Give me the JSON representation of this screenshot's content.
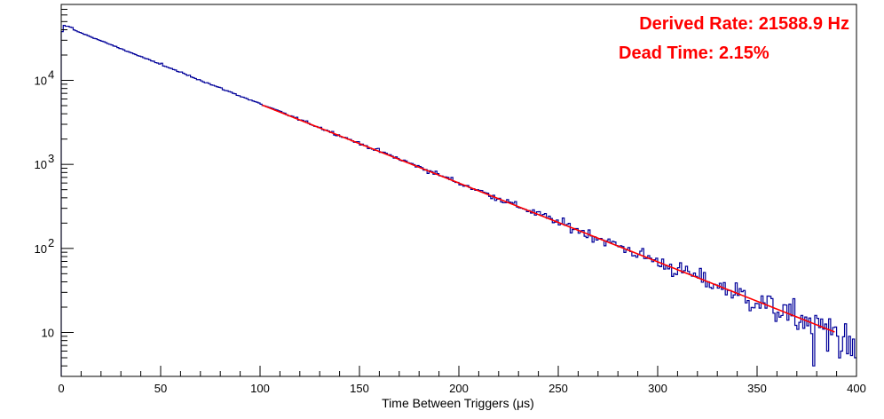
{
  "chart_data": {
    "type": "line",
    "title": "",
    "xlabel": "Time Between Triggers (μs)",
    "ylabel": "",
    "xlim": [
      0,
      400
    ],
    "ylim": [
      3,
      80000
    ],
    "yscale": "log",
    "grid": false,
    "legend": "none",
    "x_ticks": [
      0,
      50,
      100,
      150,
      200,
      250,
      300,
      350,
      400
    ],
    "y_ticks": [
      {
        "value": 10,
        "label": "10"
      },
      {
        "value": 100,
        "label": "10",
        "exp": "2"
      },
      {
        "value": 1000,
        "label": "10",
        "exp": "3"
      },
      {
        "value": 10000,
        "label": "10",
        "exp": "4"
      }
    ],
    "annotations": [
      {
        "text": "Derived Rate: 21588.9 Hz",
        "color": "#ff0000"
      },
      {
        "text": "Dead Time: 2.15%",
        "color": "#ff0000"
      }
    ],
    "series": [
      {
        "kind": "histogram",
        "color": "#000099",
        "bin_width": 1,
        "model": {
          "type": "exponential",
          "amplitude": 45000,
          "rate_per_us": 0.02159
        },
        "points": [
          {
            "x": 0,
            "y": 38000
          },
          {
            "x": 1,
            "y": 45000
          },
          {
            "x": 2,
            "y": 44000
          },
          {
            "x": 3,
            "y": 44000
          },
          {
            "x": 4,
            "y": 43000
          },
          {
            "x": 5,
            "y": 42500
          },
          {
            "x": 50,
            "y": 16000
          },
          {
            "x": 100,
            "y": 5200
          },
          {
            "x": 150,
            "y": 1700
          },
          {
            "x": 200,
            "y": 570
          },
          {
            "x": 250,
            "y": 190
          },
          {
            "x": 300,
            "y": 62
          },
          {
            "x": 325,
            "y": 40
          },
          {
            "x": 350,
            "y": 22
          },
          {
            "x": 365,
            "y": 14
          },
          {
            "x": 375,
            "y": 12
          },
          {
            "x": 378,
            "y": 4
          },
          {
            "x": 385,
            "y": 6
          },
          {
            "x": 392,
            "y": 6
          },
          {
            "x": 396,
            "y": 9
          },
          {
            "x": 399,
            "y": 5
          }
        ]
      },
      {
        "kind": "fit",
        "color": "#ff0000",
        "x_range": [
          101,
          389
        ],
        "model": {
          "type": "exponential",
          "amplitude": 45000,
          "rate_per_us": 0.02159
        }
      }
    ]
  }
}
